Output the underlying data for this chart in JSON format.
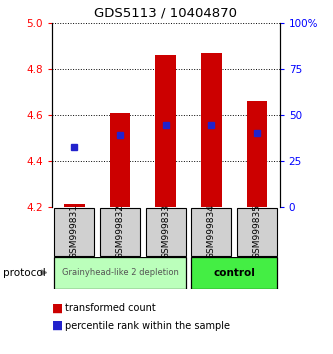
{
  "title": "GDS5113 / 10404870",
  "samples": [
    "GSM999831",
    "GSM999832",
    "GSM999833",
    "GSM999834",
    "GSM999835"
  ],
  "bar_bottoms": [
    4.2,
    4.2,
    4.2,
    4.2,
    4.2
  ],
  "bar_tops": [
    4.215,
    4.61,
    4.86,
    4.87,
    4.66
  ],
  "percentile_values": [
    4.46,
    4.515,
    4.555,
    4.555,
    4.52
  ],
  "ylim": [
    4.2,
    5.0
  ],
  "yticks": [
    4.2,
    4.4,
    4.6,
    4.8,
    5.0
  ],
  "right_yticks": [
    0,
    25,
    50,
    75,
    100
  ],
  "right_ylim": [
    0,
    100
  ],
  "bar_color": "#cc0000",
  "percentile_color": "#2222cc",
  "group1_samples": [
    0,
    1,
    2
  ],
  "group2_samples": [
    3,
    4
  ],
  "group1_label": "Grainyhead-like 2 depletion",
  "group2_label": "control",
  "group1_color": "#bbffbb",
  "group2_color": "#44ee44",
  "protocol_label": "protocol",
  "legend_red": "transformed count",
  "legend_blue": "percentile rank within the sample"
}
